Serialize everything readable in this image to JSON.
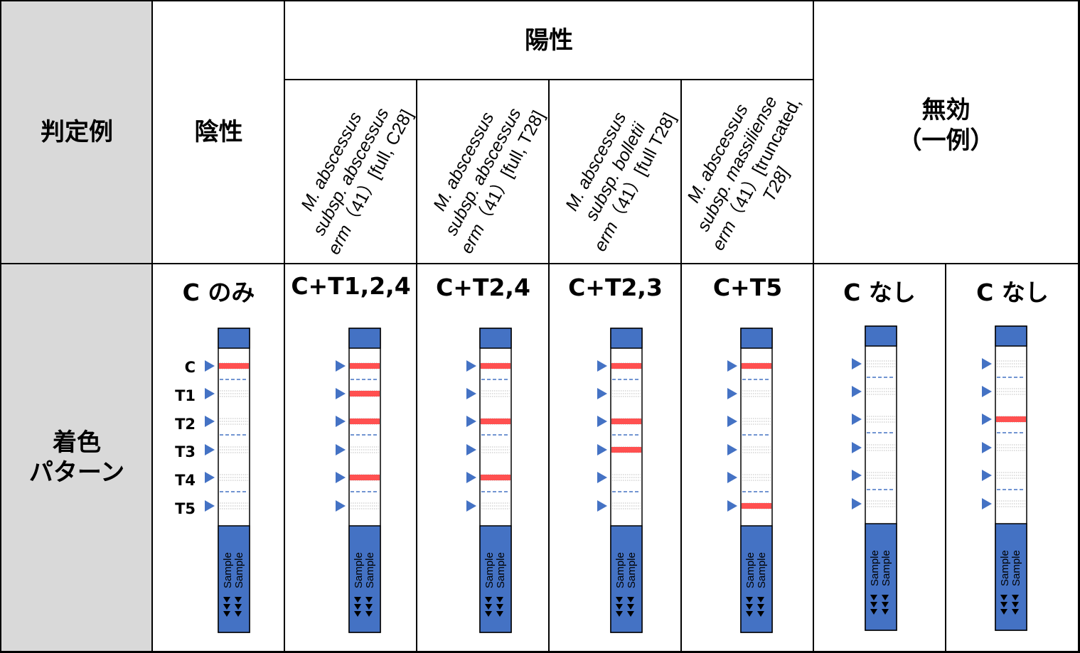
{
  "headers": {
    "row_label_top": "判定例",
    "negative": "陰性",
    "positive": "陽性",
    "invalid_line1": "無効",
    "invalid_line2": "（一例）",
    "row_label_bottom_line1": "着色",
    "row_label_bottom_line2": "パターン"
  },
  "positive_subtypes": [
    {
      "line1": "M. abscessus",
      "line2": "subsp. abscessus",
      "line3_gene": "erm",
      "line3_rest": "（41）[full, C28]"
    },
    {
      "line1": "M. abscessus",
      "line2": "subsp. abscessus",
      "line3_gene": "erm",
      "line3_rest": "（41）[full, T28]"
    },
    {
      "line1": "M. abscessus",
      "line2": "subsp. bolletii",
      "line3_gene": "erm",
      "line3_rest": "（41）[full T28]"
    },
    {
      "line1": "M. abscessus",
      "line2": "subsp. massiliense",
      "line3_gene": "erm",
      "line3_rest": "（41）[truncated,",
      "line4": "T28]"
    }
  ],
  "line_markers": [
    "C",
    "T1",
    "T2",
    "T3",
    "T4",
    "T5"
  ],
  "sample_label": "Sample",
  "colors": {
    "strip_blue": "#4472c4",
    "band_red": "#ff5050",
    "marker_blue": "#4472c4",
    "header_gray": "#d9d9d9"
  },
  "patterns": [
    {
      "label": "C のみ",
      "bands": [
        "C"
      ],
      "show_marker_text": true
    },
    {
      "label": "C+T1,2,4",
      "bands": [
        "C",
        "T1",
        "T2",
        "T4"
      ],
      "show_marker_text": false
    },
    {
      "label": "C+T2,4",
      "bands": [
        "C",
        "T2",
        "T4"
      ],
      "show_marker_text": false
    },
    {
      "label": "C+T2,3",
      "bands": [
        "C",
        "T2",
        "T3"
      ],
      "show_marker_text": false
    },
    {
      "label": "C+T5",
      "bands": [
        "C",
        "T5"
      ],
      "show_marker_text": false
    },
    {
      "label": "C なし",
      "bands": [],
      "show_marker_text": false
    },
    {
      "label": "C なし",
      "bands": [
        "T2"
      ],
      "show_marker_text": false
    }
  ]
}
